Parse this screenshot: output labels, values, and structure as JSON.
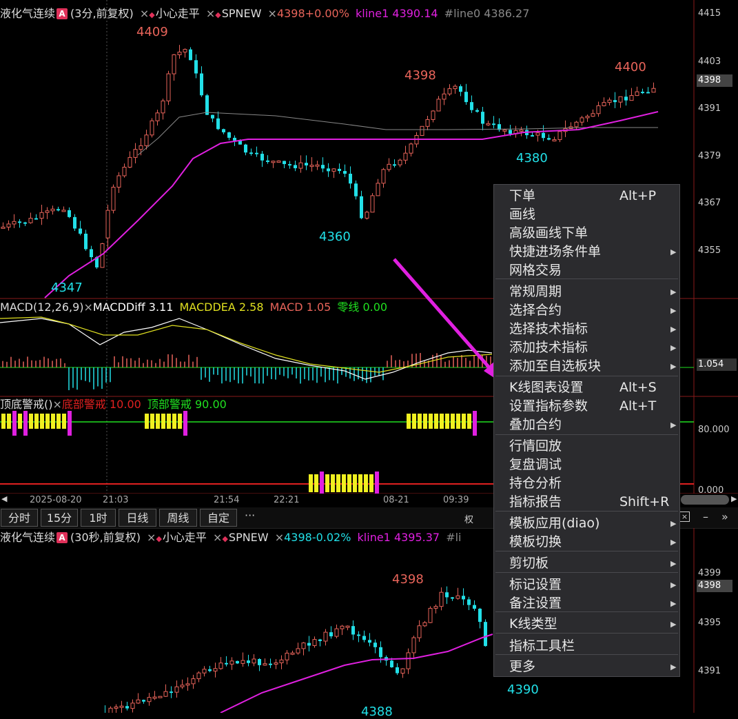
{
  "top_chart": {
    "info": {
      "symbol": "液化气连续",
      "badge": "A",
      "period": "(3分,前复权)",
      "close1": "×",
      "ind1": "小心走平",
      "close2": "×",
      "ind2": "SPNEW",
      "close3": "×",
      "price": "4398+0.00%",
      "kline1": "kline1 4390.14",
      "line0": "#line0 4386.27"
    },
    "price_axis": [
      "4415",
      "4403",
      "4398",
      "4391",
      "4379",
      "4367",
      "4355"
    ],
    "labels": {
      "high1": "4409",
      "low1": "4347",
      "low2": "4360",
      "high2": "4398",
      "high3": "4400",
      "low3": "4380"
    }
  },
  "macd": {
    "name": "MACD(12,26,9)",
    "close": "×",
    "diff": "MACDDiff 3.11",
    "dea": "MACDDEA 2.58",
    "macd": "MACD 1.05",
    "zero": "零线 0.00",
    "axis": "1.054"
  },
  "warn": {
    "name": "顶底警戒()",
    "close": "×",
    "bottom": "底部警戒 10.00",
    "top": "顶部警戒 90.00",
    "axis1": "80.000",
    "axis2": "0.000"
  },
  "time_axis": [
    "2025-08-20",
    "21:03",
    "21:54",
    "22:21",
    "08-21",
    "09:39"
  ],
  "timeframes": {
    "minute": "分时",
    "m15": "15分",
    "h1": "1时",
    "day": "日线",
    "week": "周线",
    "custom": "自定",
    "more": "···",
    "rights": "权"
  },
  "bottom_chart": {
    "info": {
      "symbol": "液化气连续",
      "badge": "A",
      "period": "(30秒,前复权)",
      "close1": "×",
      "ind1": "小心走平",
      "close2": "×",
      "ind2": "SPNEW",
      "close3": "×",
      "price": "4398-0.02%",
      "kline1": "kline1 4395.37",
      "line0": "#li"
    },
    "price_axis": [
      "4399",
      "4398",
      "4395",
      "4391"
    ],
    "labels": {
      "high": "4398",
      "low1": "4390",
      "low2": "4388"
    }
  },
  "context_menu": {
    "items": [
      {
        "label": "下单",
        "shortcut": "Alt+P",
        "sub": false
      },
      {
        "label": "画线",
        "shortcut": "",
        "sub": false
      },
      {
        "label": "高级画线下单",
        "shortcut": "",
        "sub": false
      },
      {
        "label": "快捷进场条件单",
        "shortcut": "",
        "sub": true
      },
      {
        "label": "网格交易",
        "shortcut": "",
        "sub": false
      },
      {
        "label": "常规周期",
        "shortcut": "",
        "sub": true
      },
      {
        "label": "选择合约",
        "shortcut": "",
        "sub": true
      },
      {
        "label": "选择技术指标",
        "shortcut": "",
        "sub": true
      },
      {
        "label": "添加技术指标",
        "shortcut": "",
        "sub": true
      },
      {
        "label": "添加至自选板块",
        "shortcut": "",
        "sub": true
      },
      {
        "label": "K线图表设置",
        "shortcut": "Alt+S",
        "sub": false
      },
      {
        "label": "设置指标参数",
        "shortcut": "Alt+T",
        "sub": false
      },
      {
        "label": "叠加合约",
        "shortcut": "",
        "sub": true
      },
      {
        "label": "行情回放",
        "shortcut": "",
        "sub": false
      },
      {
        "label": "复盘调试",
        "shortcut": "",
        "sub": false
      },
      {
        "label": "持仓分析",
        "shortcut": "",
        "sub": false
      },
      {
        "label": "指标报告",
        "shortcut": "Shift+R",
        "sub": false
      },
      {
        "label": "模板应用(diao)",
        "shortcut": "",
        "sub": true
      },
      {
        "label": "模板切换",
        "shortcut": "",
        "sub": true
      },
      {
        "label": "剪切板",
        "shortcut": "",
        "sub": true
      },
      {
        "label": "标记设置",
        "shortcut": "",
        "sub": true
      },
      {
        "label": "备注设置",
        "shortcut": "",
        "sub": true
      },
      {
        "label": "K线类型",
        "shortcut": "",
        "sub": true
      },
      {
        "label": "指标工具栏",
        "shortcut": "",
        "sub": false
      },
      {
        "label": "更多",
        "shortcut": "",
        "sub": true
      }
    ]
  },
  "colors": {
    "up": "#e8645a",
    "down": "#22e0e8",
    "ma": "#e020e0",
    "diff": "#ffffff",
    "dea": "#e0e020",
    "zero": "#20e020",
    "arrow": "#e020e0"
  }
}
